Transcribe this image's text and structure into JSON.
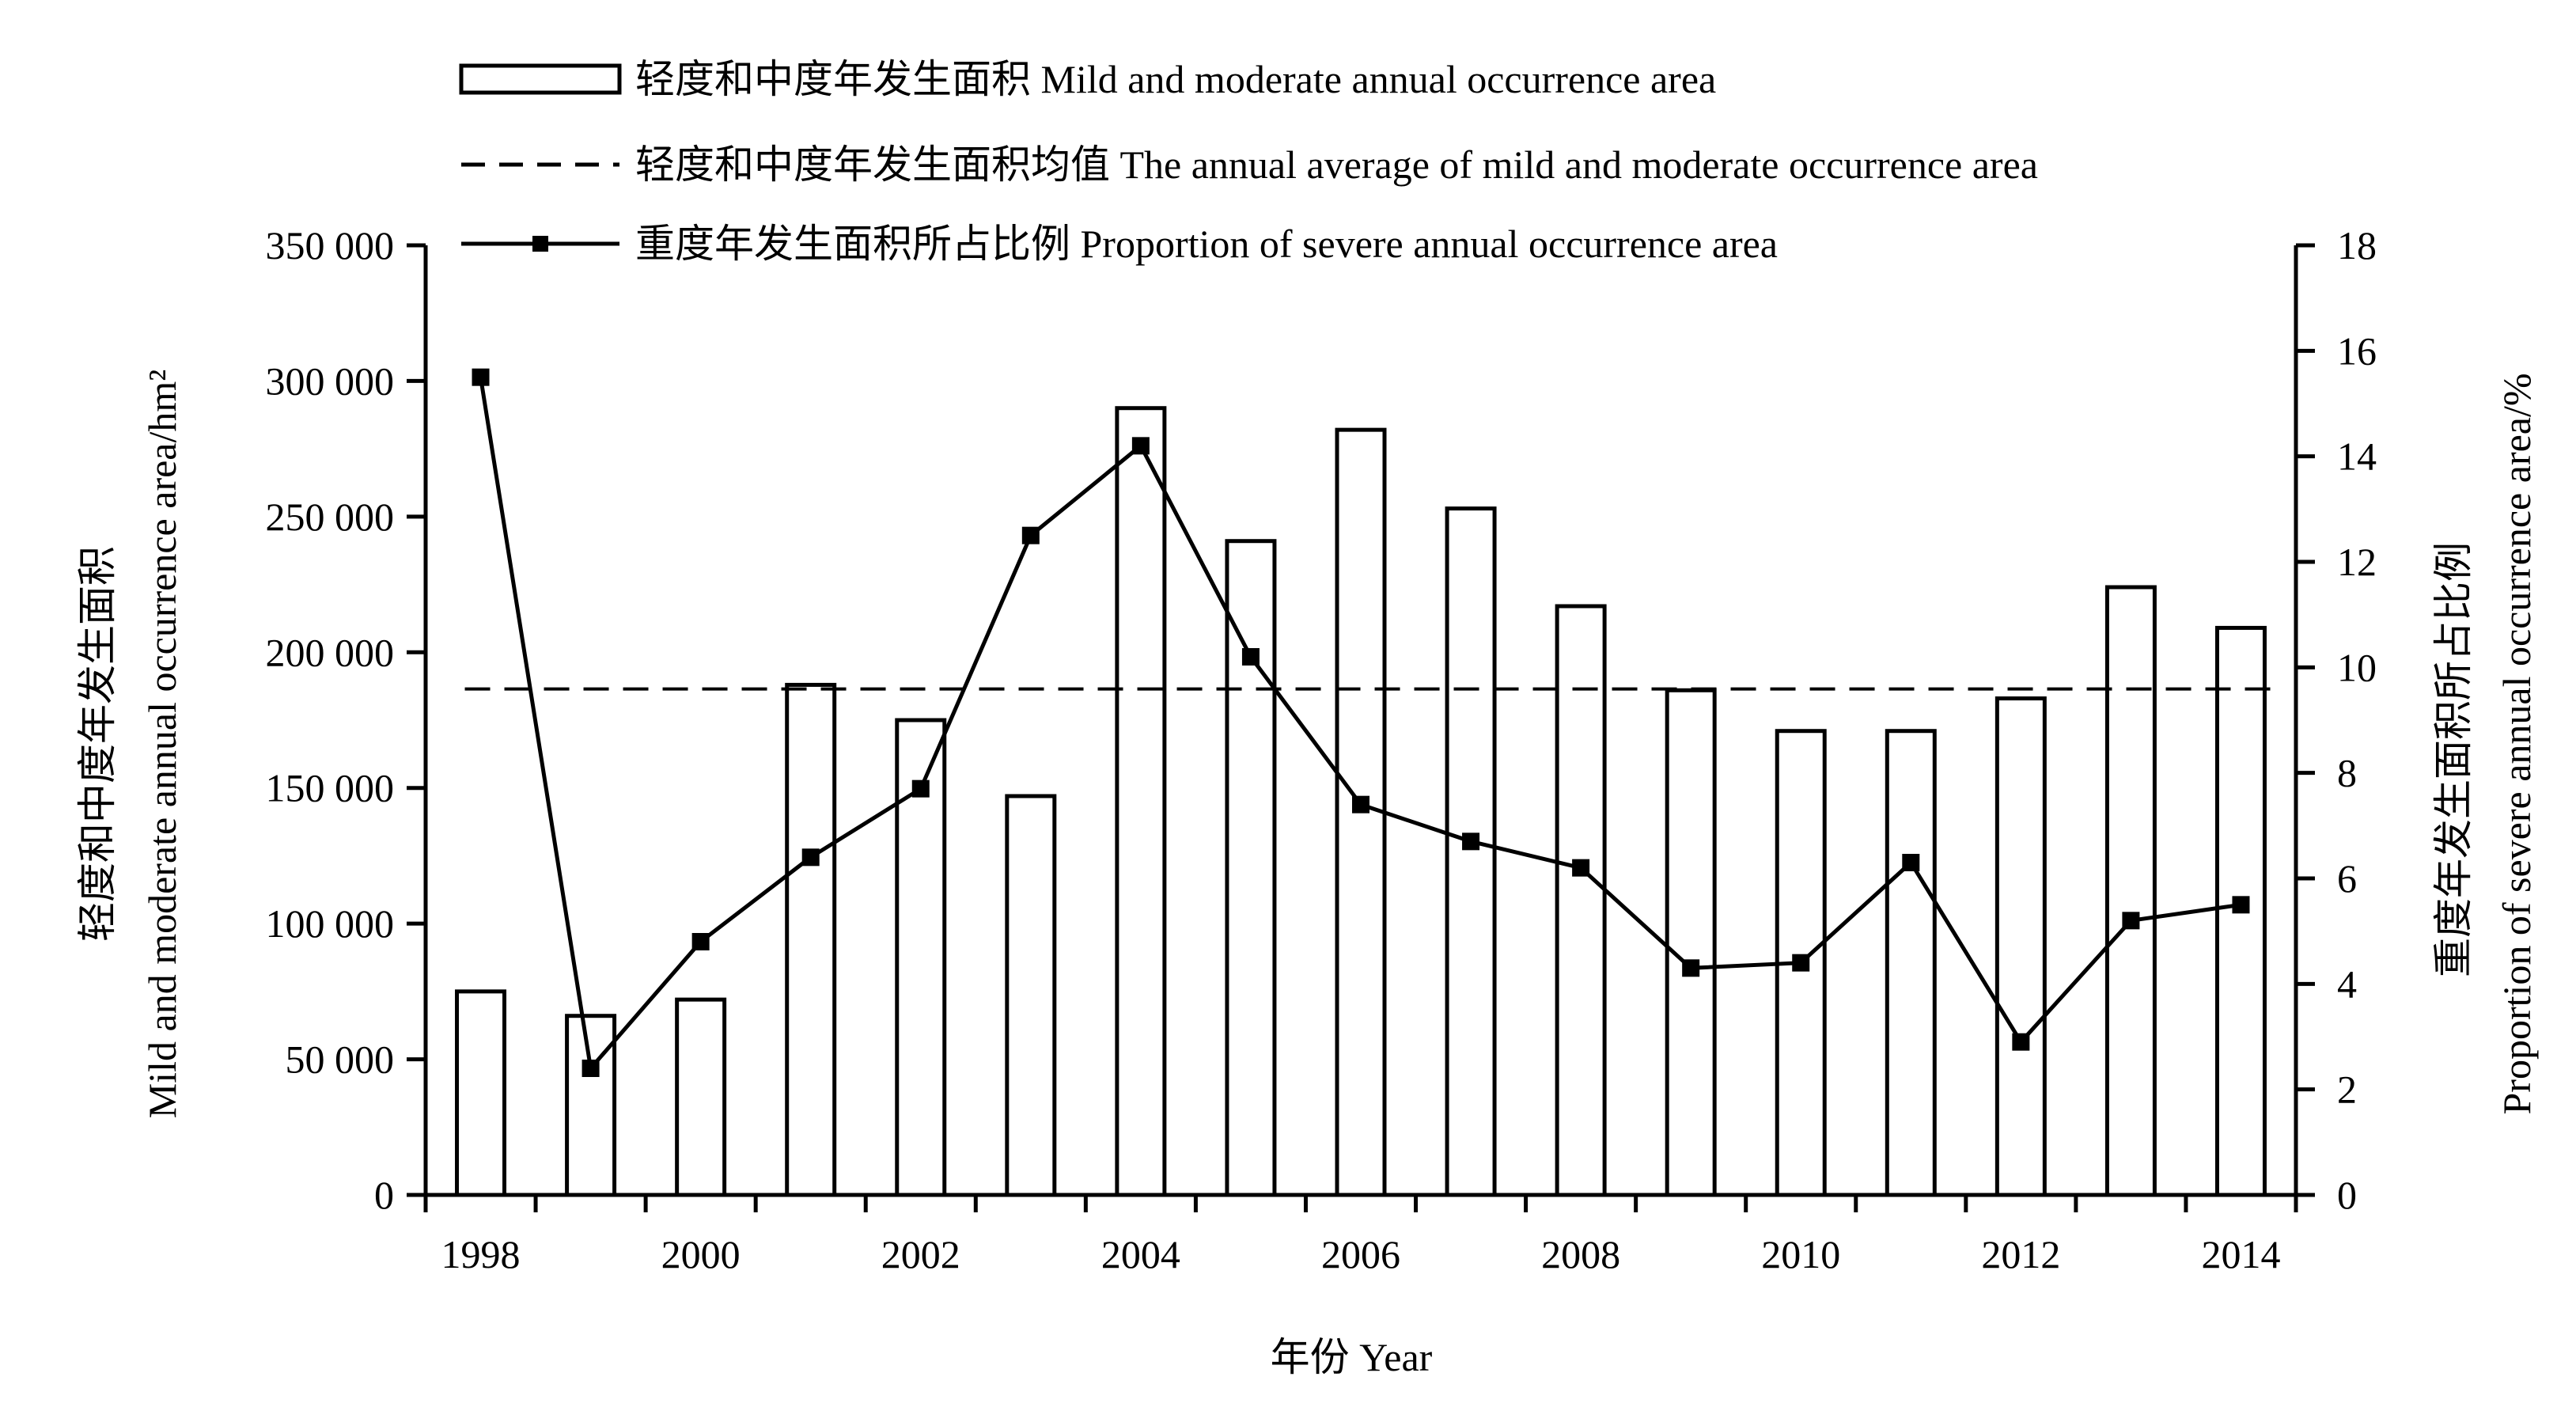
{
  "chart_data": {
    "type": "bar",
    "categories": [
      "1998",
      "1999",
      "2000",
      "2001",
      "2002",
      "2003",
      "2004",
      "2005",
      "2006",
      "2007",
      "2008",
      "2009",
      "2010",
      "2011",
      "2012",
      "2013",
      "2014"
    ],
    "x_tick_labels": [
      "1998",
      "2000",
      "2002",
      "2004",
      "2006",
      "2008",
      "2010",
      "2012",
      "2014"
    ],
    "series": [
      {
        "name": "轻度和中度年发生面积 Mild and moderate annual occurrence area",
        "kind": "bar",
        "axis": "left",
        "values": [
          75000,
          66000,
          72000,
          188000,
          175000,
          147000,
          290000,
          241000,
          282000,
          253000,
          217000,
          186000,
          171000,
          171000,
          183000,
          224000,
          209000
        ]
      },
      {
        "name": "轻度和中度年发生面积均值 The annual average of mild and moderate occurrence area",
        "kind": "dashed-line",
        "axis": "left",
        "value": 186500
      },
      {
        "name": "重度年发生面积所占比例 Proportion of severe annual occurrence area",
        "kind": "line-marker",
        "axis": "right",
        "values": [
          15.5,
          2.4,
          4.8,
          6.4,
          7.7,
          12.5,
          14.2,
          10.2,
          7.4,
          6.7,
          6.2,
          4.3,
          4.4,
          6.3,
          2.9,
          5.2,
          5.5
        ]
      }
    ],
    "y_left": {
      "label_cn": "轻度和中度年发生面积",
      "label_en": "Mild and moderate annual occurrence area/hm²",
      "ylim": [
        0,
        350000
      ],
      "ticks": [
        0,
        50000,
        100000,
        150000,
        200000,
        250000,
        300000,
        350000
      ],
      "tick_labels": [
        "0",
        "50 000",
        "100 000",
        "150 000",
        "200 000",
        "250 000",
        "300 000",
        "350 000"
      ]
    },
    "y_right": {
      "label_cn": "重度年发生面积所占比例",
      "label_en": "Proportion of severe annual occurrence area/%",
      "ylim": [
        0,
        18
      ],
      "ticks": [
        0,
        2,
        4,
        6,
        8,
        10,
        12,
        14,
        16,
        18
      ],
      "tick_labels": [
        "0",
        "2",
        "4",
        "6",
        "8",
        "10",
        "12",
        "14",
        "16",
        "18"
      ]
    },
    "xlabel": "年份 Year",
    "legend_position": "top"
  },
  "colors": {
    "ink": "#000000",
    "bar_fill": "#ffffff"
  }
}
